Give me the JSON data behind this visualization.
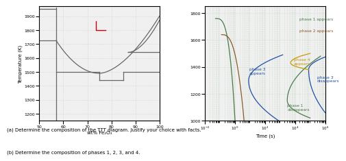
{
  "left_chart": {
    "xlabel": "wt% Fe₂O₃",
    "ylabel": "Temperature (K)",
    "xlim": [
      50,
      100
    ],
    "ylim": [
      1150,
      1970
    ],
    "yticks": [
      1200,
      1300,
      1400,
      1500,
      1600,
      1700,
      1800,
      1900
    ],
    "xticks": [
      50,
      60,
      70,
      80,
      90,
      100
    ],
    "grid_color": "#cccccc",
    "line_color": "#666666",
    "red_color": "#cc0000",
    "bg_color": "#f0f0f0"
  },
  "right_chart": {
    "xlabel": "Time (s)",
    "xlim_log": [
      -2,
      6
    ],
    "ylim": [
      1000,
      1850
    ],
    "yticks": [
      1000,
      1200,
      1400,
      1600,
      1800
    ],
    "xtick_vals": [
      -2,
      0,
      2,
      4,
      6
    ],
    "grid_color": "#b8d0b8",
    "bg_color": "#f0f0f0",
    "colors": {
      "phase1": "#4a7a4a",
      "phase2": "#8b5a28",
      "phase3": "#2050a0",
      "phase4": "#c8980a"
    },
    "label_phase1_appears": "phase 1 appears",
    "label_phase2_appears": "phase 2 appears",
    "label_phase3_appears": "phase 3\nappears",
    "label_phase4_appears": "phase 4\nappears",
    "label_phase3_disappears": "phase 3\ndisappears",
    "label_phase1_disappears": "phase 1\ndisappears"
  },
  "caption_a": "(a) Determine the composition of the TTT diagram. Justify your choice with facts.",
  "caption_b": "(b) Determine the composition of phases 1, 2, 3, and 4."
}
